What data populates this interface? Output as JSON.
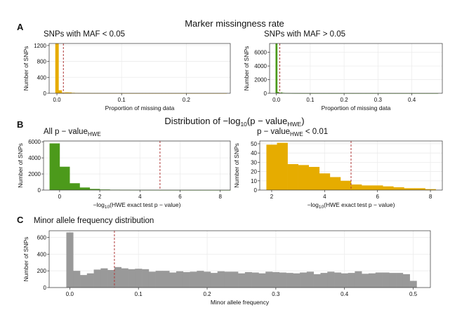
{
  "panels": {
    "a": {
      "letter": "A",
      "title": "Marker missingness rate"
    },
    "b": {
      "letter": "B",
      "title_pre": "Distribution of −log",
      "title_sub": "10",
      "title_post": "(p − value",
      "title_sub2": "HWE",
      "title_end": ")"
    },
    "c": {
      "letter": "C",
      "title": "Minor allele frequency distribution"
    }
  },
  "colors": {
    "orange": "#e6ac00",
    "green": "#4c9a1b",
    "gray": "#999999",
    "vline": "#b03a3a",
    "grid": "#ececec"
  },
  "chart_data": [
    {
      "id": "a1",
      "type": "bar",
      "title": "SNPs with MAF < 0.05",
      "xlabel": "Proportion of missing data",
      "ylabel": "Number of SNPs",
      "xlim": [
        -0.012,
        0.268
      ],
      "ylim": [
        0,
        1250
      ],
      "xticks": [
        0.0,
        0.1,
        0.2
      ],
      "xtick_labels": [
        "0.0",
        "0.1",
        "0.2"
      ],
      "yticks": [
        0,
        400,
        800,
        1200
      ],
      "ytick_labels": [
        "0",
        "400",
        "800",
        "1200"
      ],
      "bin_width": 0.005,
      "bin_start": -0.0025,
      "values": [
        1250,
        75,
        18,
        22,
        20,
        12,
        8,
        6,
        5,
        4,
        4,
        3,
        3,
        3,
        2,
        2,
        2,
        2,
        2,
        2,
        1,
        1,
        1,
        1,
        1,
        1,
        1,
        1,
        1,
        1,
        1,
        1,
        1,
        1,
        1,
        1,
        1,
        1,
        1,
        1,
        1,
        1,
        1,
        1,
        1,
        1,
        1,
        1,
        1,
        1,
        1,
        1,
        1
      ],
      "color": "#e6ac00",
      "vline": 0.01
    },
    {
      "id": "a2",
      "type": "bar",
      "title": "SNPs with MAF > 0.05",
      "xlabel": "Proportion of missing data",
      "ylabel": "Number of SNPs",
      "xlim": [
        -0.02,
        0.49
      ],
      "ylim": [
        0,
        7300
      ],
      "xticks": [
        0.0,
        0.1,
        0.2,
        0.3,
        0.4
      ],
      "xtick_labels": [
        "0.0",
        "0.1",
        "0.2",
        "0.3",
        "0.4"
      ],
      "yticks": [
        0,
        2000,
        4000,
        6000
      ],
      "ytick_labels": [
        "0",
        "2000",
        "4000",
        "6000"
      ],
      "bin_width": 0.005,
      "bin_start": -0.0025,
      "values": [
        7300,
        180,
        40,
        120,
        60,
        30,
        20,
        15,
        10,
        8,
        6,
        5,
        5,
        4,
        4,
        3,
        3,
        3,
        3,
        2,
        2,
        2,
        2,
        2,
        2,
        2,
        2,
        2,
        2,
        2,
        2,
        2,
        2,
        2,
        2,
        2,
        2,
        2,
        2,
        2,
        2,
        2,
        2,
        2,
        2,
        2,
        2,
        2,
        2,
        2,
        2,
        2,
        2,
        2,
        2,
        2,
        2,
        2,
        2,
        2,
        2,
        2,
        2,
        2,
        2,
        2,
        2,
        2,
        2,
        2,
        2,
        2,
        2,
        2,
        2,
        2,
        2,
        2,
        2,
        2,
        2,
        2,
        2,
        2,
        2,
        2,
        2,
        2,
        2,
        2,
        2,
        2,
        2,
        2,
        2,
        2
      ],
      "color": "#4c9a1b",
      "vline": 0.01
    },
    {
      "id": "b1",
      "type": "bar",
      "title": "All p − value",
      "title_sub": "HWE",
      "xlabel_pre": "−log",
      "xlabel_sub": "10",
      "xlabel_post": "(HWE exact test p − value)",
      "ylabel": "Number of SNPs",
      "xlim": [
        -0.8,
        8.5
      ],
      "ylim": [
        0,
        6100
      ],
      "xticks": [
        0,
        2,
        4,
        6,
        8
      ],
      "xtick_labels": [
        "0",
        "2",
        "4",
        "6",
        "8"
      ],
      "yticks": [
        0,
        2000,
        4000,
        6000
      ],
      "ytick_labels": [
        "0",
        "2000",
        "4000",
        "6000"
      ],
      "bin_width": 0.5,
      "bin_start": -0.5,
      "values": [
        5800,
        2900,
        850,
        320,
        140,
        70,
        40,
        25,
        15,
        10,
        8,
        6,
        5,
        4,
        3,
        3,
        2,
        2
      ],
      "color": "#4c9a1b",
      "vline": 5
    },
    {
      "id": "b2",
      "type": "bar",
      "title": "p − value",
      "title_sub": "HWE",
      "title_post": " < 0.01",
      "xlabel_pre": "−log",
      "xlabel_sub": "10",
      "xlabel_post": "(HWE exact test p − value)",
      "ylabel": "Number of SNPs",
      "xlim": [
        1.55,
        8.45
      ],
      "ylim": [
        0,
        53
      ],
      "xticks": [
        2,
        4,
        6,
        8
      ],
      "xtick_labels": [
        "2",
        "4",
        "6",
        "8"
      ],
      "yticks": [
        0,
        10,
        20,
        30,
        40,
        50
      ],
      "ytick_labels": [
        "0",
        "10",
        "20",
        "30",
        "40",
        "50"
      ],
      "bin_width": 0.4,
      "bin_start": 1.8,
      "values": [
        49,
        51,
        28,
        27,
        25,
        18,
        14,
        10,
        6,
        5,
        5,
        4,
        3,
        2,
        2,
        1
      ],
      "color": "#e6ac00",
      "vline": 5
    },
    {
      "id": "c1",
      "type": "bar",
      "title": "",
      "xlabel": "Minor allele frequency",
      "ylabel": "Number of SNPs",
      "xlim": [
        -0.03,
        0.525
      ],
      "ylim": [
        0,
        680
      ],
      "xticks": [
        0.0,
        0.1,
        0.2,
        0.3,
        0.4,
        0.5
      ],
      "xtick_labels": [
        "0.0",
        "0.1",
        "0.2",
        "0.3",
        "0.4",
        "0.5"
      ],
      "yticks": [
        0,
        200,
        400,
        600
      ],
      "ytick_labels": [
        "0",
        "200",
        "400",
        "600"
      ],
      "bin_width": 0.01,
      "bin_start": -0.005,
      "values": [
        660,
        200,
        150,
        170,
        215,
        230,
        210,
        245,
        230,
        220,
        225,
        220,
        190,
        200,
        200,
        180,
        195,
        185,
        190,
        200,
        190,
        175,
        195,
        190,
        190,
        170,
        185,
        180,
        170,
        190,
        185,
        180,
        175,
        170,
        180,
        190,
        160,
        175,
        190,
        180,
        170,
        175,
        195,
        165,
        170,
        180,
        180,
        175,
        175,
        160,
        80
      ],
      "color": "#999999",
      "vline": 0.065
    }
  ]
}
